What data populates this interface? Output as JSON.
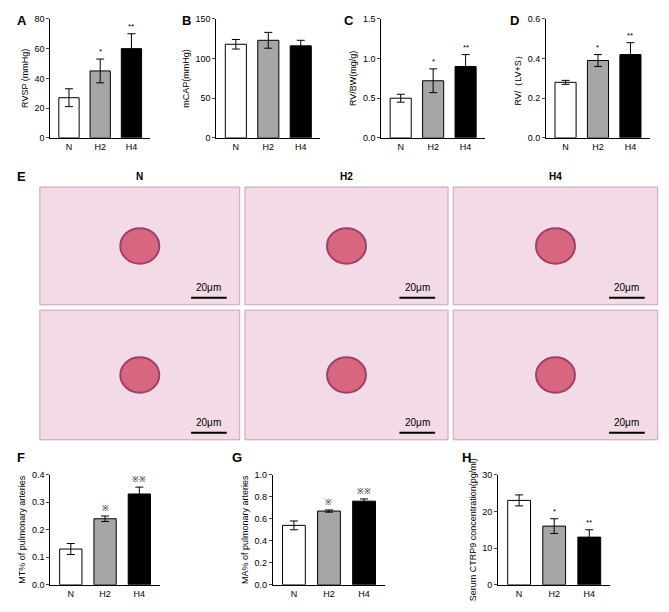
{
  "chart_data": [
    {
      "panel": "A",
      "type": "bar",
      "categories": [
        "N",
        "H2",
        "H4"
      ],
      "values": [
        27,
        45,
        60
      ],
      "errors": [
        6,
        8,
        10
      ],
      "annotations": [
        null,
        "*",
        "**"
      ],
      "colors": [
        "#ffffff",
        "#a6a6a6",
        "#000000"
      ],
      "y_label": "RVSP (mmHg)",
      "ylim": [
        0,
        80
      ],
      "yticks": [
        0,
        20,
        40,
        60,
        80
      ]
    },
    {
      "panel": "B",
      "type": "bar",
      "categories": [
        "N",
        "H2",
        "H4"
      ],
      "values": [
        118,
        123,
        116
      ],
      "errors": [
        6,
        10,
        7
      ],
      "colors": [
        "#ffffff",
        "#a6a6a6",
        "#000000"
      ],
      "y_label": "mCAP(mmHg)",
      "ylim": [
        0,
        150
      ],
      "yticks": [
        0,
        50,
        100,
        150
      ]
    },
    {
      "panel": "C",
      "type": "bar",
      "categories": [
        "N",
        "H2",
        "H4"
      ],
      "values": [
        0.5,
        0.72,
        0.9
      ],
      "errors": [
        0.05,
        0.15,
        0.15
      ],
      "annotations": [
        null,
        "*",
        "**"
      ],
      "colors": [
        "#ffffff",
        "#a6a6a6",
        "#000000"
      ],
      "y_label": "RV/BW(mg/g)",
      "ylim": [
        0,
        1.5
      ],
      "yticks": [
        {
          "value": 0,
          "label": "0.0"
        },
        {
          "value": 0.5,
          "label": "0.5"
        },
        {
          "value": 1,
          "label": "1.0"
        },
        {
          "value": 1.5,
          "label": "1.5"
        }
      ]
    },
    {
      "panel": "D",
      "type": "bar",
      "categories": [
        "N",
        "H2",
        "H4"
      ],
      "values": [
        0.28,
        0.39,
        0.42
      ],
      "errors": [
        0.01,
        0.03,
        0.06
      ],
      "annotations": [
        null,
        "*",
        "**"
      ],
      "colors": [
        "#ffffff",
        "#a6a6a6",
        "#000000"
      ],
      "y_label": "RV/（LV+S）",
      "ylim": [
        0,
        0.6
      ],
      "yticks": [
        {
          "value": 0,
          "label": "0.0"
        },
        0.2,
        0.4,
        0.6
      ]
    },
    {
      "panel": "F",
      "type": "bar",
      "categories": [
        "N",
        "H2",
        "H4"
      ],
      "values": [
        0.13,
        0.24,
        0.33
      ],
      "errors": [
        0.02,
        0.01,
        0.025
      ],
      "annotations": [
        null,
        "※",
        "※※"
      ],
      "colors": [
        "#ffffff",
        "#a6a6a6",
        "#000000"
      ],
      "y_label": "MT% of pulmonary arteries",
      "ylim": [
        0,
        0.4
      ],
      "yticks": [
        {
          "value": 0,
          "label": "0.0"
        },
        0.1,
        0.2,
        0.3,
        0.4
      ]
    },
    {
      "panel": "G",
      "type": "bar",
      "categories": [
        "N",
        "H2",
        "H4"
      ],
      "values": [
        0.54,
        0.67,
        0.76
      ],
      "errors": [
        0.04,
        0.01,
        0.02
      ],
      "annotations": [
        null,
        "※",
        "※※"
      ],
      "colors": [
        "#ffffff",
        "#a6a6a6",
        "#000000"
      ],
      "y_label": "MA% of pulmonary arteries",
      "ylim": [
        0,
        1
      ],
      "yticks": [
        {
          "value": 0,
          "label": "0.0"
        },
        0.2,
        0.4,
        0.6,
        0.8,
        {
          "value": 1,
          "label": "1.0"
        }
      ]
    },
    {
      "panel": "H",
      "type": "bar",
      "categories": [
        "N",
        "H2",
        "H4"
      ],
      "values": [
        23,
        16,
        13
      ],
      "errors": [
        1.5,
        2,
        2
      ],
      "annotations": [
        null,
        "*",
        "**"
      ],
      "colors": [
        "#ffffff",
        "#a6a6a6",
        "#000000"
      ],
      "y_label": "Serum CTRP9 concentration(pg/ml)",
      "ylim": [
        0,
        30
      ],
      "yticks": [
        0,
        10,
        20,
        30
      ]
    }
  ],
  "image_panel": {
    "panel": "E",
    "columns": [
      "N",
      "H2",
      "H4"
    ],
    "scale_bars": [
      "20μm",
      "20μm",
      "20μm",
      "20μm",
      "20μm",
      "20μm"
    ]
  }
}
